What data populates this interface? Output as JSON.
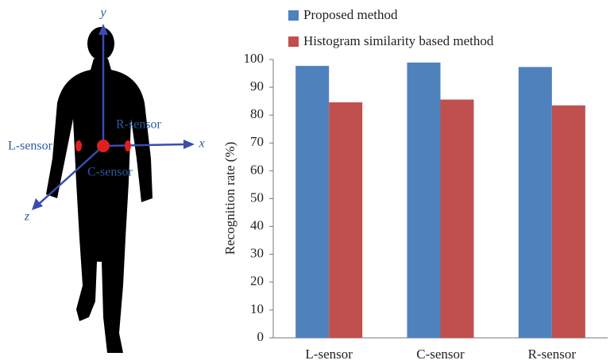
{
  "figure": {
    "axis_labels": {
      "x": "x",
      "y": "y",
      "z": "z"
    },
    "sensors": {
      "left": "L-sensor",
      "center": "C-sensor",
      "right": "R-sensor"
    }
  },
  "chart_data": {
    "type": "bar",
    "y_label": "Recognition rate (%)",
    "categories": [
      "L-sensor",
      "C-sensor",
      "R-sensor"
    ],
    "series": [
      {
        "name": "Proposed method",
        "color": "#4f81bd",
        "values": [
          97.7,
          98.9,
          97.3
        ]
      },
      {
        "name": "Histogram similarity based method",
        "color": "#c0504d",
        "values": [
          84.6,
          85.6,
          83.5
        ]
      }
    ],
    "ylim": [
      0,
      100
    ],
    "yticks": [
      0,
      10,
      20,
      30,
      40,
      50,
      60,
      70,
      80,
      90,
      100
    ],
    "grid": false,
    "legend": "top"
  }
}
